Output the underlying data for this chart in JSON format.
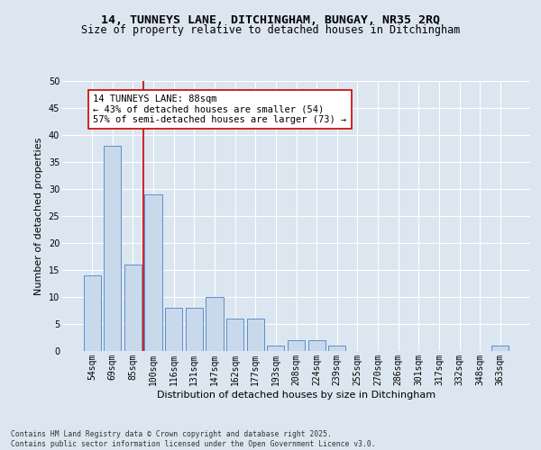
{
  "title_line1": "14, TUNNEYS LANE, DITCHINGHAM, BUNGAY, NR35 2RQ",
  "title_line2": "Size of property relative to detached houses in Ditchingham",
  "xlabel": "Distribution of detached houses by size in Ditchingham",
  "ylabel": "Number of detached properties",
  "categories": [
    "54sqm",
    "69sqm",
    "85sqm",
    "100sqm",
    "116sqm",
    "131sqm",
    "147sqm",
    "162sqm",
    "177sqm",
    "193sqm",
    "208sqm",
    "224sqm",
    "239sqm",
    "255sqm",
    "270sqm",
    "286sqm",
    "301sqm",
    "317sqm",
    "332sqm",
    "348sqm",
    "363sqm"
  ],
  "values": [
    14,
    38,
    16,
    29,
    8,
    8,
    10,
    6,
    6,
    1,
    2,
    2,
    1,
    0,
    0,
    0,
    0,
    0,
    0,
    0,
    1
  ],
  "bar_color": "#c9d9ec",
  "bar_edge_color": "#5b8fc9",
  "vline_x": 2.5,
  "vline_color": "#cc0000",
  "annotation_text": "14 TUNNEYS LANE: 88sqm\n← 43% of detached houses are smaller (54)\n57% of semi-detached houses are larger (73) →",
  "annotation_box_color": "white",
  "annotation_box_edge": "#cc0000",
  "ylim": [
    0,
    50
  ],
  "yticks": [
    0,
    5,
    10,
    15,
    20,
    25,
    30,
    35,
    40,
    45,
    50
  ],
  "footer_text": "Contains HM Land Registry data © Crown copyright and database right 2025.\nContains public sector information licensed under the Open Government Licence v3.0.",
  "bg_color": "#dce6f0",
  "plot_bg_color": "#dce6f0",
  "grid_color": "#ffffff",
  "title_fontsize": 9.5,
  "subtitle_fontsize": 8.5,
  "axis_label_fontsize": 8,
  "tick_fontsize": 7,
  "annotation_fontsize": 7.5,
  "footer_fontsize": 5.8
}
